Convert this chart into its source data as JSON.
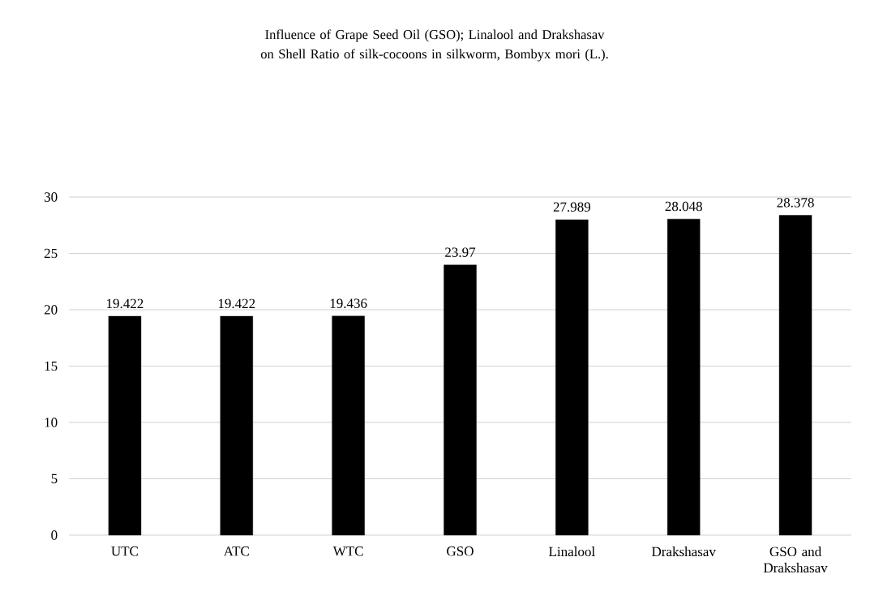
{
  "chart_data": {
    "type": "bar",
    "title": "Influence of Grape Seed Oil (GSO); Linalool and Drakshasav on Shell Ratio of silk-cocoons in silkworm, Bombyx mori (L.).",
    "categories": [
      "UTC",
      "ATC",
      "WTC",
      "GSO",
      "Linalool",
      "Drakshasav",
      "GSO and Drakshasav"
    ],
    "values": [
      19.422,
      19.422,
      19.436,
      23.97,
      27.989,
      28.048,
      28.378
    ],
    "value_labels": [
      "19.422",
      "19.422",
      "19.436",
      "23.97",
      "27.989",
      "28.048",
      "28.378"
    ],
    "color": "#000000",
    "ylim": [
      0,
      30
    ],
    "yticks": [
      0,
      5,
      10,
      15,
      20,
      25,
      30
    ],
    "grid": "y"
  }
}
